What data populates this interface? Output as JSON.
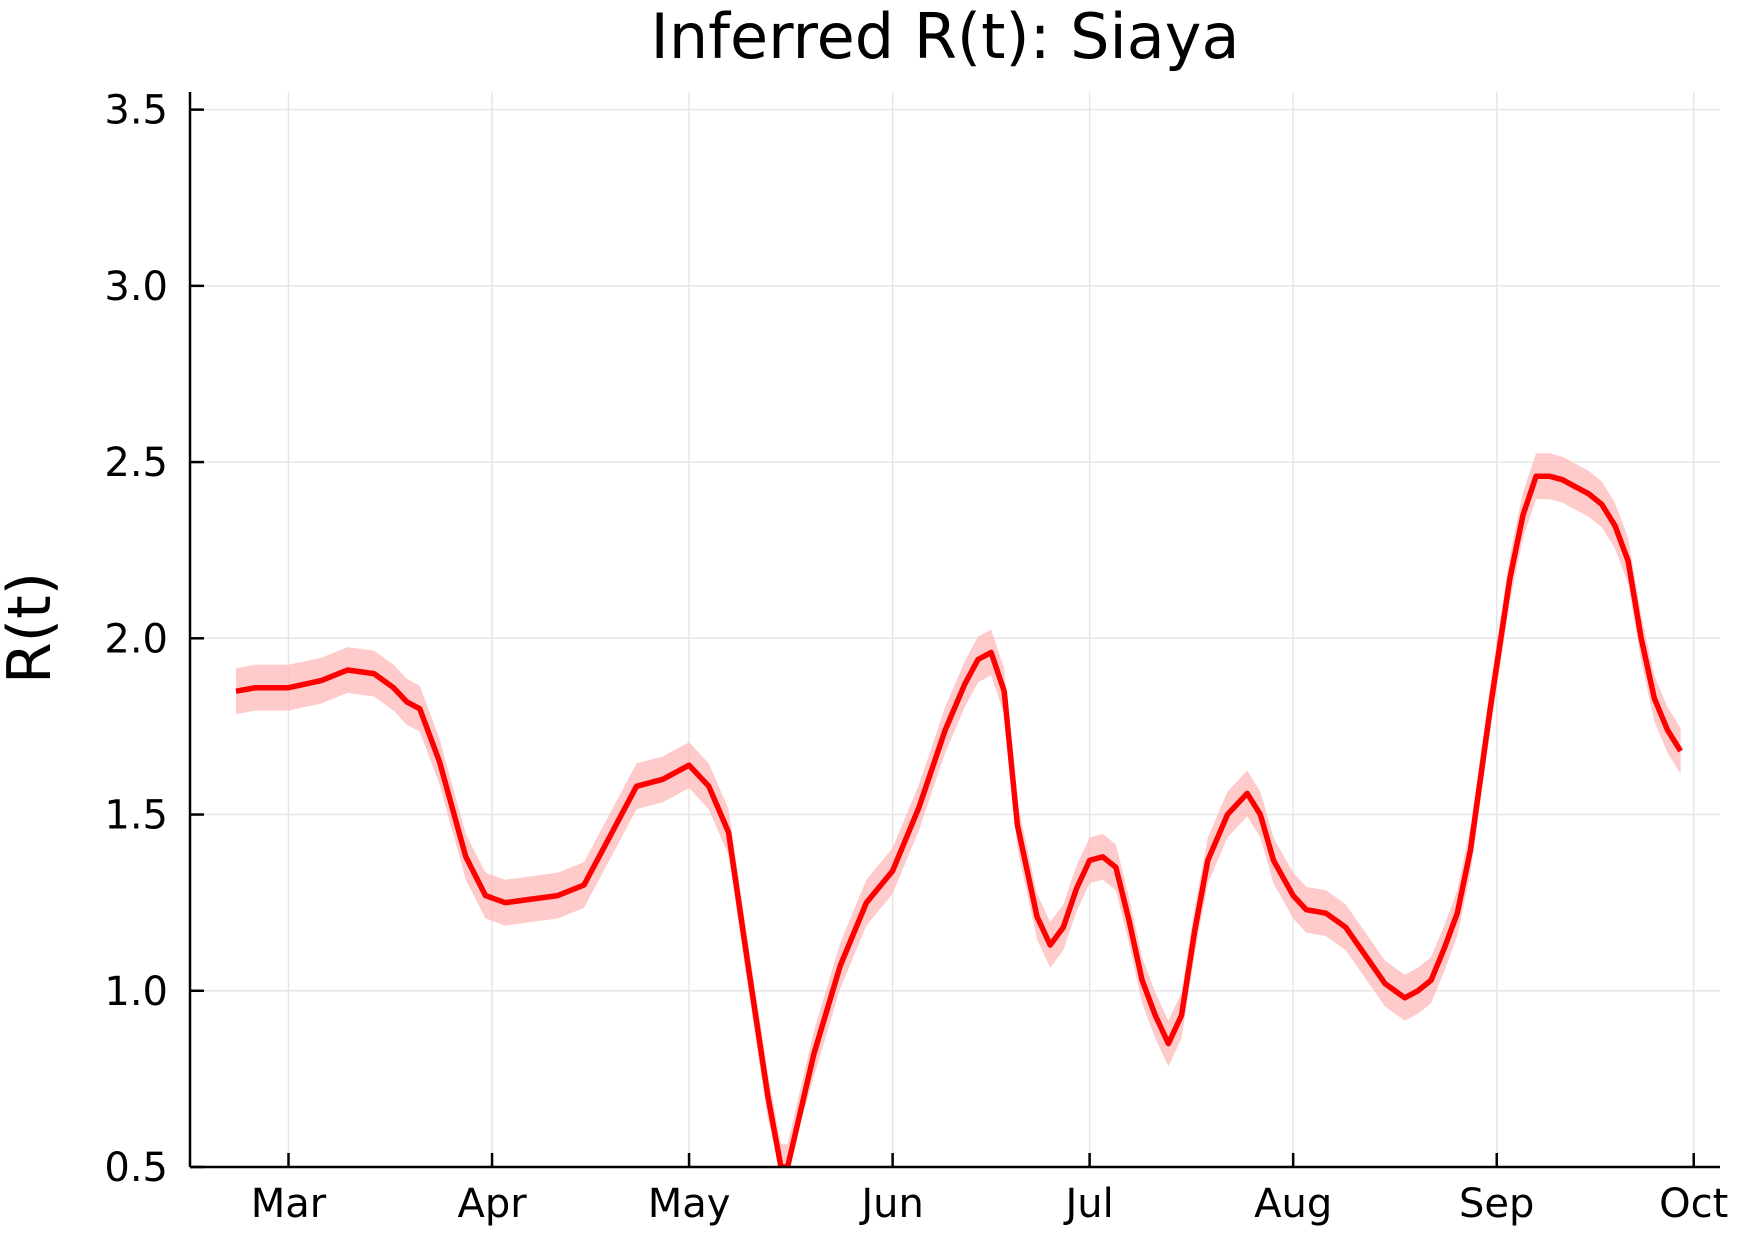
{
  "chart_data": {
    "type": "line",
    "title": "Inferred R(t): Siaya",
    "xlabel": "",
    "ylabel": "R(t)",
    "ylim": [
      0.5,
      3.55
    ],
    "xlim": [
      "2020-02-15",
      "2020-10-05"
    ],
    "grid": true,
    "legend": "none",
    "x_ticks": [
      {
        "date": "2020-03-01",
        "label": "Mar"
      },
      {
        "date": "2020-04-01",
        "label": "Apr"
      },
      {
        "date": "2020-05-01",
        "label": "May"
      },
      {
        "date": "2020-06-01",
        "label": "Jun"
      },
      {
        "date": "2020-07-01",
        "label": "Jul"
      },
      {
        "date": "2020-08-01",
        "label": "Aug"
      },
      {
        "date": "2020-09-01",
        "label": "Sep"
      },
      {
        "date": "2020-10-01",
        "label": "Oct"
      }
    ],
    "y_ticks": [
      {
        "value": 0.5,
        "label": "0.5"
      },
      {
        "value": 1.0,
        "label": "1.0"
      },
      {
        "value": 1.5,
        "label": "1.5"
      },
      {
        "value": 2.0,
        "label": "2.0"
      },
      {
        "value": 2.5,
        "label": "2.5"
      },
      {
        "value": 3.0,
        "label": "3.0"
      },
      {
        "value": 3.5,
        "label": "3.5"
      }
    ],
    "colors": {
      "line": "#ff0000",
      "band": "#ffb3b3"
    },
    "series": [
      {
        "x": [
          "2020-02-22",
          "2020-02-25",
          "2020-03-01",
          "2020-03-06",
          "2020-03-10",
          "2020-03-14",
          "2020-03-17",
          "2020-03-19",
          "2020-03-21",
          "2020-03-24",
          "2020-03-28",
          "2020-03-31",
          "2020-04-03",
          "2020-04-07",
          "2020-04-11",
          "2020-04-15",
          "2020-04-19",
          "2020-04-23",
          "2020-04-27",
          "2020-05-01",
          "2020-05-04",
          "2020-05-07",
          "2020-05-10",
          "2020-05-13",
          "2020-05-15",
          "2020-05-16",
          "2020-05-20",
          "2020-05-24",
          "2020-05-28",
          "2020-06-01",
          "2020-06-05",
          "2020-06-09",
          "2020-06-12",
          "2020-06-14",
          "2020-06-16",
          "2020-06-18",
          "2020-06-20",
          "2020-06-23",
          "2020-06-25",
          "2020-06-27",
          "2020-06-29",
          "2020-07-01",
          "2020-07-03",
          "2020-07-05",
          "2020-07-07",
          "2020-07-09",
          "2020-07-11",
          "2020-07-13",
          "2020-07-15",
          "2020-07-17",
          "2020-07-19",
          "2020-07-22",
          "2020-07-25",
          "2020-07-27",
          "2020-07-29",
          "2020-08-01",
          "2020-08-03",
          "2020-08-06",
          "2020-08-09",
          "2020-08-12",
          "2020-08-15",
          "2020-08-18",
          "2020-08-20",
          "2020-08-22",
          "2020-08-24",
          "2020-08-26",
          "2020-08-28",
          "2020-08-31",
          "2020-09-03",
          "2020-09-05",
          "2020-09-07",
          "2020-09-09",
          "2020-09-11",
          "2020-09-13",
          "2020-09-15",
          "2020-09-17",
          "2020-09-19",
          "2020-09-21",
          "2020-09-23",
          "2020-09-25",
          "2020-09-27",
          "2020-09-29"
        ],
        "y": [
          1.85,
          1.86,
          1.86,
          1.88,
          1.91,
          1.9,
          1.86,
          1.82,
          1.8,
          1.65,
          1.38,
          1.27,
          1.25,
          1.26,
          1.27,
          1.3,
          1.44,
          1.58,
          1.6,
          1.64,
          1.58,
          1.45,
          1.07,
          0.7,
          0.5,
          0.5,
          0.82,
          1.07,
          1.25,
          1.34,
          1.52,
          1.74,
          1.87,
          1.94,
          1.96,
          1.85,
          1.47,
          1.21,
          1.13,
          1.18,
          1.29,
          1.37,
          1.38,
          1.35,
          1.2,
          1.03,
          0.93,
          0.85,
          0.93,
          1.17,
          1.37,
          1.5,
          1.56,
          1.5,
          1.37,
          1.27,
          1.23,
          1.22,
          1.18,
          1.1,
          1.02,
          0.98,
          1.0,
          1.03,
          1.12,
          1.22,
          1.4,
          1.8,
          2.17,
          2.35,
          2.46,
          2.46,
          2.45,
          2.43,
          2.41,
          2.38,
          2.32,
          2.22,
          2.0,
          1.83,
          1.74,
          1.68
        ]
      }
    ]
  }
}
